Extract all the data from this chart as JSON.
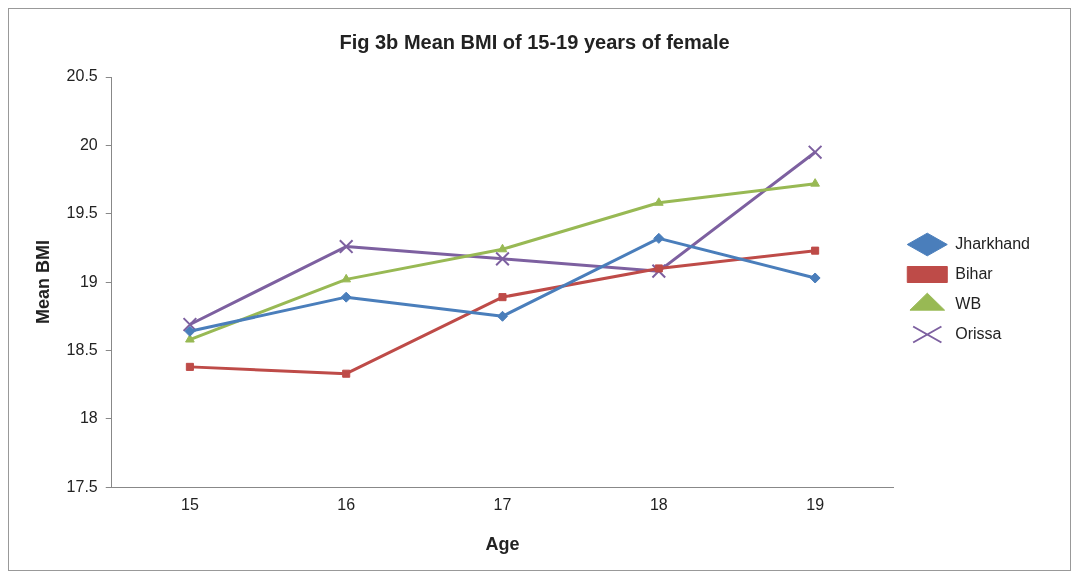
{
  "chart_data": {
    "type": "line",
    "title": "Fig 3b Mean BMI of 15-19 years of female",
    "xlabel": "Age",
    "ylabel": "Mean BMI",
    "categories": [
      "15",
      "16",
      "17",
      "18",
      "19"
    ],
    "series": [
      {
        "name": "Jharkhand",
        "color": "#4a7ebb",
        "marker": "diamond",
        "values": [
          18.64,
          18.89,
          18.75,
          19.32,
          19.03
        ]
      },
      {
        "name": "Bihar",
        "color": "#be4b48",
        "marker": "square",
        "values": [
          18.38,
          18.33,
          18.89,
          19.1,
          19.23
        ]
      },
      {
        "name": "WB",
        "color": "#98b954",
        "marker": "triangle",
        "values": [
          18.58,
          19.02,
          19.24,
          19.58,
          19.72
        ]
      },
      {
        "name": "Orissa",
        "color": "#7d60a0",
        "marker": "cross",
        "values": [
          18.69,
          19.26,
          19.17,
          19.08,
          19.95
        ]
      }
    ],
    "ylim": [
      17.5,
      20.5
    ],
    "yticks": [
      17.5,
      18,
      18.5,
      19,
      19.5,
      20,
      20.5
    ],
    "grid": false,
    "legend": "right",
    "line_style": "solid"
  }
}
